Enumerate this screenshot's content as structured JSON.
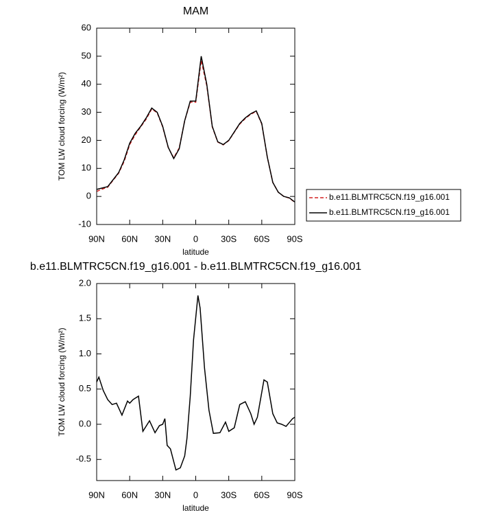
{
  "chart_data": [
    {
      "type": "line",
      "title": "MAM",
      "x_label": "latitude",
      "y_label": "TOM LW cloud forcing (W/m²)",
      "x": [
        90,
        85,
        80,
        75,
        70,
        65,
        60,
        55,
        50,
        45,
        40,
        35,
        30,
        25,
        20,
        15,
        10,
        5,
        0,
        -5,
        -10,
        -15,
        -20,
        -25,
        -30,
        -35,
        -40,
        -45,
        -50,
        -55,
        -60,
        -65,
        -70,
        -75,
        -80,
        -85,
        -90
      ],
      "series": [
        {
          "name": "b.e11.BLMTRC5CN.f19_g16.001",
          "color": "#d42020",
          "dash": true,
          "values": [
            1.8,
            2.6,
            3.3,
            5.8,
            8.3,
            12.5,
            18.5,
            22,
            24.8,
            27.6,
            31.2,
            29.8,
            24.8,
            17.4,
            13.8,
            17.3,
            27,
            33.6,
            33.6,
            48.5,
            39.5,
            24.8,
            19.4,
            18.4,
            19.9,
            22.9,
            25.8,
            27.8,
            29.3,
            30.3,
            25.8,
            14,
            5,
            1.5,
            0,
            -0.6,
            -2.1
          ]
        },
        {
          "name": "b.e11.BLMTRC5CN.f19_g16.001",
          "color": "#000000",
          "dash": false,
          "values": [
            2.5,
            3,
            3.5,
            6,
            8.5,
            13,
            19,
            22.5,
            25,
            28,
            31.5,
            30,
            25,
            17.5,
            13.5,
            17,
            27,
            34,
            34,
            50,
            40,
            25,
            19.5,
            18.5,
            20,
            23,
            26,
            28,
            29.5,
            30.5,
            26,
            14,
            5,
            1.5,
            0,
            -0.5,
            -2
          ]
        }
      ],
      "xlim": [
        90,
        -90
      ],
      "ylim": [
        -10,
        60
      ],
      "xticks": [
        {
          "value": 90,
          "label": "90N"
        },
        {
          "value": 60,
          "label": "60N"
        },
        {
          "value": 30,
          "label": "30N"
        },
        {
          "value": 0,
          "label": "0"
        },
        {
          "value": -30,
          "label": "30S"
        },
        {
          "value": -60,
          "label": "60S"
        },
        {
          "value": -90,
          "label": "90S"
        }
      ],
      "yticks": [
        -10,
        0,
        10,
        20,
        30,
        40,
        50,
        60
      ],
      "legend": "right"
    },
    {
      "type": "line",
      "title": "b.e11.BLMTRC5CN.f19_g16.001 - b.e11.BLMTRC5CN.f19_g16.001",
      "x_label": "latitude",
      "y_label": "TOM LW cloud forcing (W/m²)",
      "x": [
        90,
        88,
        84,
        80,
        76,
        72,
        67,
        62,
        60,
        57,
        52,
        48,
        42,
        37,
        33,
        30,
        28,
        26,
        23,
        18,
        14,
        10,
        8,
        5,
        2,
        -2,
        -4,
        -8,
        -12,
        -16,
        -22,
        -27,
        -30,
        -35,
        -40,
        -45,
        -50,
        -53,
        -56,
        -62,
        -65,
        -70,
        -74,
        -78,
        -82,
        -88,
        -90
      ],
      "series": [
        {
          "name": "",
          "color": "#000000",
          "dash": false,
          "values": [
            0.6,
            0.67,
            0.48,
            0.35,
            0.28,
            0.3,
            0.13,
            0.33,
            0.3,
            0.35,
            0.4,
            -0.1,
            0.05,
            -0.12,
            -0.02,
            0.0,
            0.08,
            -0.3,
            -0.35,
            -0.65,
            -0.62,
            -0.45,
            -0.2,
            0.4,
            1.2,
            1.83,
            1.65,
            0.8,
            0.2,
            -0.13,
            -0.12,
            0.03,
            -0.1,
            -0.05,
            0.28,
            0.32,
            0.15,
            0.0,
            0.1,
            0.63,
            0.6,
            0.15,
            0.02,
            0.0,
            -0.03,
            0.08,
            0.1
          ]
        }
      ],
      "xlim": [
        90,
        -90
      ],
      "ylim": [
        -0.8,
        2.0
      ],
      "xticks": [
        {
          "value": 90,
          "label": "90N"
        },
        {
          "value": 60,
          "label": "60N"
        },
        {
          "value": 30,
          "label": "30N"
        },
        {
          "value": 0,
          "label": "0"
        },
        {
          "value": -30,
          "label": "30S"
        },
        {
          "value": -60,
          "label": "60S"
        },
        {
          "value": -90,
          "label": "90S"
        }
      ],
      "yticks": [
        -0.5,
        {
          "value": 0,
          "label": "0.0"
        },
        0.5,
        {
          "value": 1,
          "label": "1.0"
        },
        1.5,
        {
          "value": 2,
          "label": "2.0"
        }
      ]
    }
  ]
}
